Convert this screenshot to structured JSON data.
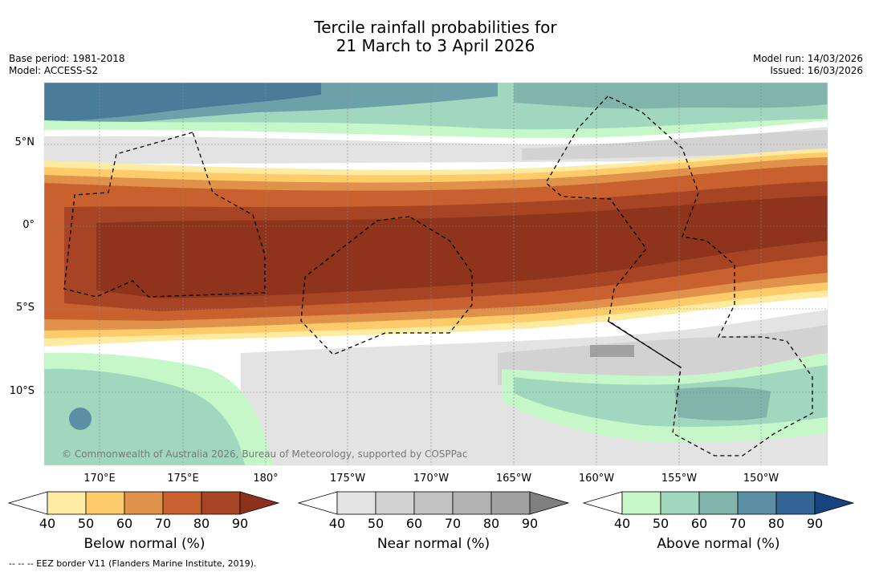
{
  "title_line1": "Tercile rainfall probabilities for",
  "title_line2": "21 March to 3 April 2026",
  "base_period": "Base period: 1981-2018",
  "model": "Model: ACCESS-S2",
  "model_run": "Model run: 14/03/2026",
  "issued": "Issued: 16/03/2026",
  "lat_labels": [
    "5°N",
    "0°",
    "5°S",
    "10°S"
  ],
  "lon_labels": [
    "170°E",
    "175°E",
    "180°",
    "175°W",
    "170°W",
    "165°W",
    "160°W",
    "155°W",
    "150°W"
  ],
  "copyright": "© Commonwealth of Australia 2026, Bureau of Meteorology, supported by COSPPac",
  "footnote": "--  --  -- EEZ border V11 (Flanders Marine Institute, 2019).",
  "colorbars": [
    {
      "label": "Below normal (%)",
      "ticks": [
        "40",
        "50",
        "60",
        "70",
        "80",
        "90"
      ],
      "colors": [
        "#ffffff",
        "#feeba2",
        "#fdcb6a",
        "#e0914a",
        "#c9612f",
        "#a74423",
        "#8c321c"
      ]
    },
    {
      "label": "Near normal (%)",
      "ticks": [
        "40",
        "50",
        "60",
        "70",
        "80",
        "90"
      ],
      "colors": [
        "#ffffff",
        "#e3e3e3",
        "#d2d2d2",
        "#c2c2c2",
        "#b2b2b2",
        "#a1a1a1",
        "#808080"
      ]
    },
    {
      "label": "Above normal (%)",
      "ticks": [
        "40",
        "50",
        "60",
        "70",
        "80",
        "90"
      ],
      "colors": [
        "#ffffff",
        "#c5f7c9",
        "#a2d7bf",
        "#81b4ab",
        "#5b8fa3",
        "#346695",
        "#16447e"
      ]
    }
  ]
}
